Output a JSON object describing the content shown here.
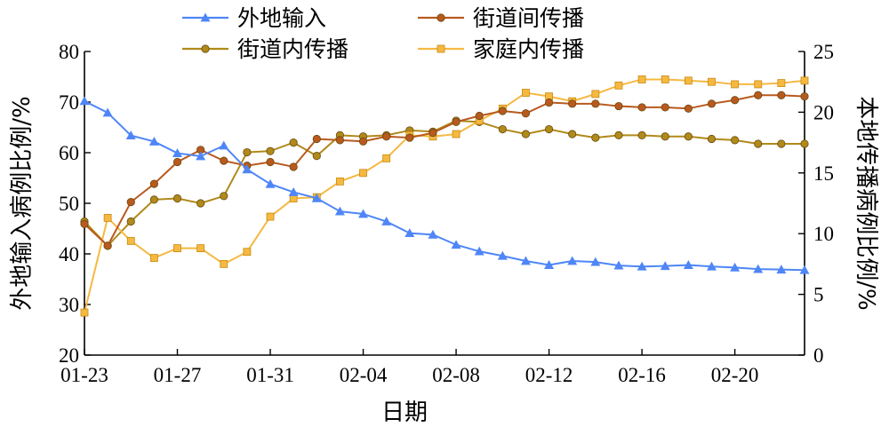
{
  "chart_data": {
    "type": "line",
    "x_ticks": [
      "01-23",
      "01-27",
      "01-31",
      "02-04",
      "02-08",
      "02-12",
      "02-16",
      "02-20"
    ],
    "xlabel": "日期",
    "ylabel_left": "外地输入病例比例/%",
    "ylabel_right": "本地传播病例比例/%",
    "ylim_left": [
      20,
      80
    ],
    "ylim_right": [
      0,
      25
    ],
    "yticks_left": [
      "20",
      "30",
      "40",
      "50",
      "60",
      "70",
      "80"
    ],
    "yticks_right": [
      "0",
      "5",
      "10",
      "15",
      "20",
      "25"
    ],
    "grid": false,
    "legend_position": "top",
    "series": [
      {
        "name": "外地输入",
        "axis": "left",
        "color": "#4f86f7",
        "marker": "triangle",
        "values": [
          70.2,
          67.9,
          63.4,
          62.2,
          59.9,
          59.3,
          61.4,
          56.7,
          53.8,
          52.2,
          51.0,
          48.4,
          47.9,
          46.4,
          44.1,
          43.8,
          41.8,
          40.5,
          39.6,
          38.6,
          37.8,
          38.6,
          38.4,
          37.7,
          37.5,
          37.6,
          37.8,
          37.5,
          37.3,
          37.0,
          36.9,
          36.8
        ]
      },
      {
        "name": "街道间传播",
        "axis": "right",
        "color": "#b85a1e",
        "marker": "circle",
        "values": [
          10.8,
          9.0,
          12.6,
          14.1,
          15.9,
          16.9,
          16.0,
          15.6,
          15.9,
          15.5,
          17.8,
          17.7,
          17.6,
          18.0,
          17.9,
          18.3,
          19.2,
          19.7,
          20.1,
          19.9,
          20.8,
          20.7,
          20.7,
          20.5,
          20.4,
          20.4,
          20.3,
          20.7,
          21.0,
          21.4,
          21.4,
          21.3
        ]
      },
      {
        "name": "街道内传播",
        "axis": "right",
        "color": "#b08a1a",
        "marker": "circle",
        "values": [
          11.0,
          9.0,
          11.0,
          12.8,
          12.9,
          12.5,
          13.1,
          16.7,
          16.8,
          17.5,
          16.4,
          18.1,
          18.0,
          18.1,
          18.5,
          18.4,
          19.3,
          19.2,
          18.6,
          18.2,
          18.6,
          18.2,
          17.9,
          18.1,
          18.1,
          18.0,
          18.0,
          17.8,
          17.7,
          17.4,
          17.4,
          17.4
        ]
      },
      {
        "name": "家庭内传播",
        "axis": "right",
        "color": "#f5b942",
        "marker": "square",
        "values": [
          3.5,
          11.3,
          9.4,
          8.0,
          8.8,
          8.8,
          7.5,
          8.5,
          11.4,
          12.9,
          13.0,
          14.3,
          15.0,
          16.2,
          18.1,
          18.0,
          18.2,
          19.3,
          20.3,
          21.6,
          21.3,
          20.9,
          21.5,
          22.2,
          22.7,
          22.7,
          22.6,
          22.5,
          22.3,
          22.3,
          22.4,
          22.6
        ]
      }
    ]
  }
}
